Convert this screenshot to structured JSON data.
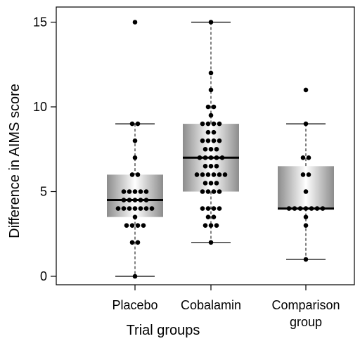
{
  "chart_data": {
    "type": "box",
    "xlabel": "Trial groups",
    "ylabel": "Difference in AIMS score",
    "ylim": [
      -0.5,
      15.8
    ],
    "yticks": [
      0,
      5,
      10,
      15
    ],
    "grid": false,
    "categories": [
      "Placebo",
      "Cobalamin",
      "Comparison group"
    ],
    "category_labels": [
      [
        "Placebo"
      ],
      [
        "Cobalamin"
      ],
      [
        "Comparison",
        "group"
      ]
    ],
    "boxes": [
      {
        "category": "Placebo",
        "whisker_low": 0,
        "q1": 3.5,
        "median": 4.5,
        "q3": 6,
        "whisker_high": 9
      },
      {
        "category": "Cobalamin",
        "whisker_low": 2,
        "q1": 5,
        "median": 7,
        "q3": 9,
        "whisker_high": 15
      },
      {
        "category": "Comparison group",
        "whisker_low": 1,
        "q1": 4,
        "median": 4,
        "q3": 6.5,
        "whisker_high": 9
      }
    ],
    "points": [
      {
        "category": "Placebo",
        "values": [
          0,
          2,
          2,
          3,
          3,
          3,
          3,
          3.5,
          4,
          4,
          4,
          4,
          4,
          4,
          4,
          4.5,
          4.5,
          4.5,
          4.5,
          4.5,
          5,
          5,
          5,
          5,
          5,
          6,
          6,
          7,
          8,
          9,
          9,
          15
        ]
      },
      {
        "category": "Cobalamin",
        "values": [
          2,
          3,
          3,
          3,
          3.5,
          3.5,
          4,
          4,
          4,
          4,
          5,
          5,
          5,
          5,
          5.5,
          5.5,
          5.5,
          6,
          6,
          6,
          6,
          6,
          6,
          6.5,
          6.5,
          6.5,
          7,
          7,
          7,
          7,
          7,
          7.5,
          7.5,
          7.5,
          8,
          8,
          8,
          8,
          8.5,
          8.5,
          9,
          9,
          9,
          9,
          9.5,
          10,
          10,
          11,
          12,
          15
        ]
      },
      {
        "category": "Comparison group",
        "values": [
          1,
          3,
          3.5,
          4,
          4,
          4,
          4,
          4,
          4,
          4,
          5,
          6,
          6,
          7,
          7,
          9,
          11
        ]
      }
    ],
    "colors": {
      "box_edge": "#ffffff",
      "box_shade_dark": "#8c8c8c",
      "box_shade_light": "#ffffff",
      "median": "#000000",
      "point": "#000000"
    }
  }
}
